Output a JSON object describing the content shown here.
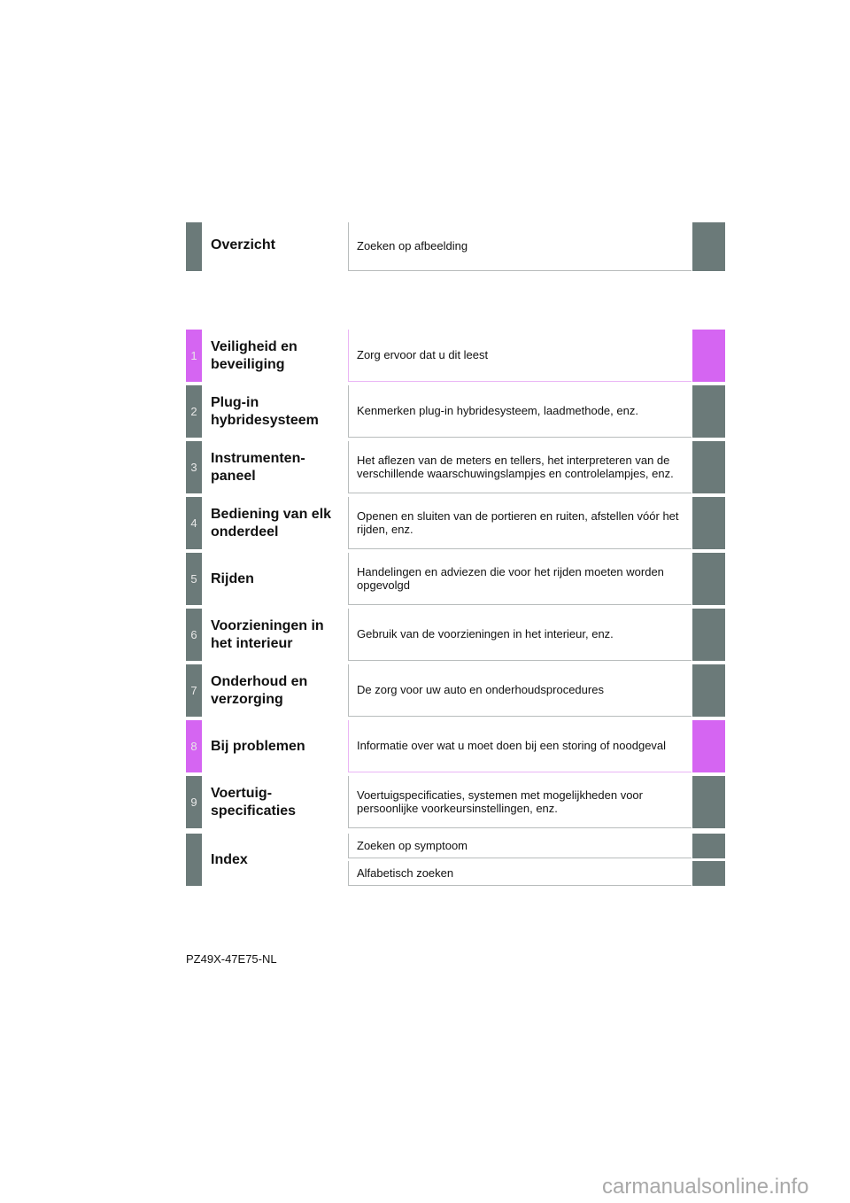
{
  "overview": {
    "title": "Overzicht",
    "desc": "Zoeken op afbeelding"
  },
  "chapters": [
    {
      "num": "1",
      "title": "Veiligheid en beveiliging",
      "desc": "Zorg ervoor dat u dit leest",
      "color": "#d565f2"
    },
    {
      "num": "2",
      "title": "Plug-in hybridesysteem",
      "desc": "Kenmerken plug-in hybridesysteem, laadmethode, enz."
    },
    {
      "num": "3",
      "title": "Instrumenten-paneel",
      "desc": "Het aflezen van de meters en tellers, het interpreteren van de verschillende waarschuwingslampjes en controlelampjes, enz."
    },
    {
      "num": "4",
      "title": "Bediening van elk onderdeel",
      "desc": "Openen en sluiten van de portieren en ruiten, afstellen vóór het rijden, enz."
    },
    {
      "num": "5",
      "title": "Rijden",
      "desc": "Handelingen en adviezen die voor het rijden moeten worden opgevolgd"
    },
    {
      "num": "6",
      "title": "Voorzieningen in het interieur",
      "desc": "Gebruik van de voorzieningen in het interieur, enz."
    },
    {
      "num": "7",
      "title": "Onderhoud en verzorging",
      "desc": "De zorg voor uw auto en onderhoudsprocedures"
    },
    {
      "num": "8",
      "title": "Bij problemen",
      "desc": "Informatie over wat u moet doen bij een storing of noodgeval",
      "color": "#d565f2"
    },
    {
      "num": "9",
      "title": "Voertuig-specificaties",
      "desc": "Voertuigspecificaties, systemen met mogelijkheden voor persoonlijke voorkeursinstellingen, enz."
    }
  ],
  "index": {
    "title": "Index",
    "items": [
      "Zoeken op symptoom",
      "Alfabetisch zoeken"
    ]
  },
  "colors": {
    "tab": "#6b7a79",
    "highlight": "#d565f2"
  },
  "footer": {
    "code": "PZ49X-47E75-NL",
    "watermark": "carmanualsonline.info"
  }
}
